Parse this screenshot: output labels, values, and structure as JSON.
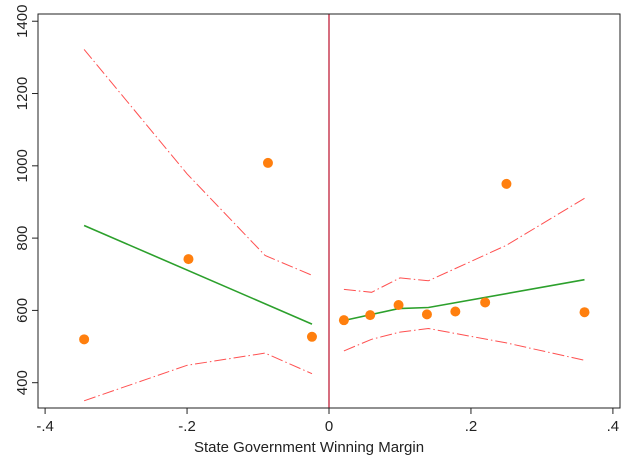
{
  "chart_data": {
    "type": "scatter",
    "title": "",
    "xlabel": "State Government Winning Margin",
    "ylabel": "",
    "xlim": [
      -0.41,
      0.41
    ],
    "ylim": [
      330,
      1420
    ],
    "x_ticks": [
      {
        "value": -0.4,
        "label": "-.4"
      },
      {
        "value": -0.2,
        "label": "-.2"
      },
      {
        "value": 0,
        "label": "0"
      },
      {
        "value": 0.2,
        "label": ".2"
      },
      {
        "value": 0.4,
        "label": ".4"
      }
    ],
    "y_ticks": [
      {
        "value": 400,
        "label": "400"
      },
      {
        "value": 600,
        "label": "600"
      },
      {
        "value": 800,
        "label": "800"
      },
      {
        "value": 1000,
        "label": "1000"
      },
      {
        "value": 1200,
        "label": "1200"
      },
      {
        "value": 1400,
        "label": "1400"
      }
    ],
    "grid": false,
    "cutoff_x": 0,
    "colors": {
      "points": "#ff7f0e",
      "fit": "#2ca02c",
      "ci": "#ff5050",
      "cutoff": "#c0203a",
      "axis": "#222222"
    },
    "points": [
      {
        "x": -0.345,
        "y": 520
      },
      {
        "x": -0.198,
        "y": 742
      },
      {
        "x": -0.086,
        "y": 1008
      },
      {
        "x": -0.024,
        "y": 527
      },
      {
        "x": 0.021,
        "y": 573
      },
      {
        "x": 0.058,
        "y": 587
      },
      {
        "x": 0.098,
        "y": 615
      },
      {
        "x": 0.138,
        "y": 589
      },
      {
        "x": 0.178,
        "y": 597
      },
      {
        "x": 0.22,
        "y": 622
      },
      {
        "x": 0.25,
        "y": 950
      },
      {
        "x": 0.36,
        "y": 595
      }
    ],
    "fit_left": [
      {
        "x": -0.345,
        "y": 835
      },
      {
        "x": -0.024,
        "y": 562
      }
    ],
    "fit_right": [
      {
        "x": 0.021,
        "y": 572
      },
      {
        "x": 0.098,
        "y": 605
      },
      {
        "x": 0.14,
        "y": 608
      },
      {
        "x": 0.36,
        "y": 685
      }
    ],
    "ci_left_upper": [
      {
        "x": -0.345,
        "y": 1322
      },
      {
        "x": -0.2,
        "y": 978
      },
      {
        "x": -0.09,
        "y": 752
      },
      {
        "x": -0.024,
        "y": 697
      }
    ],
    "ci_left_lower": [
      {
        "x": -0.345,
        "y": 350
      },
      {
        "x": -0.2,
        "y": 448
      },
      {
        "x": -0.09,
        "y": 482
      },
      {
        "x": -0.024,
        "y": 425
      }
    ],
    "ci_right_upper": [
      {
        "x": 0.021,
        "y": 658
      },
      {
        "x": 0.06,
        "y": 650
      },
      {
        "x": 0.1,
        "y": 690
      },
      {
        "x": 0.14,
        "y": 682
      },
      {
        "x": 0.25,
        "y": 780
      },
      {
        "x": 0.36,
        "y": 910
      }
    ],
    "ci_right_lower": [
      {
        "x": 0.021,
        "y": 488
      },
      {
        "x": 0.06,
        "y": 520
      },
      {
        "x": 0.1,
        "y": 540
      },
      {
        "x": 0.14,
        "y": 550
      },
      {
        "x": 0.25,
        "y": 510
      },
      {
        "x": 0.36,
        "y": 462
      }
    ]
  }
}
